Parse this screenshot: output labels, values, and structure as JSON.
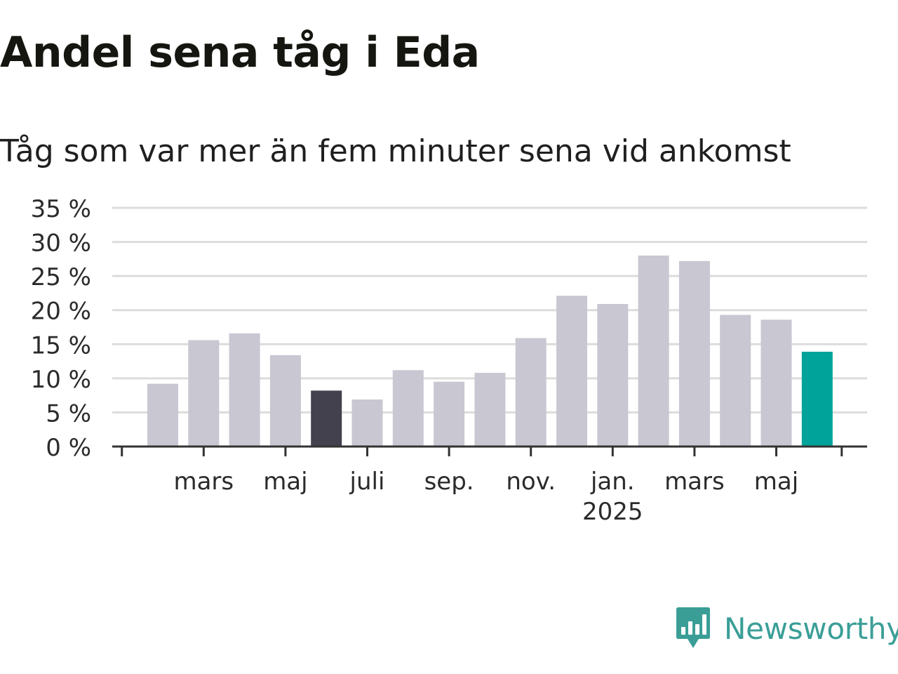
{
  "title": "Andel sena tåg i Eda",
  "subtitle": "Tåg som var mer än fem minuter sena vid ankomst",
  "logo": {
    "text": "Newsworthy",
    "color": "#3a9e97"
  },
  "chart_data": {
    "type": "bar",
    "categories": [
      "2024-02",
      "2024-03",
      "2024-04",
      "2024-05",
      "2024-06",
      "2024-07",
      "2024-08",
      "2024-09",
      "2024-10",
      "2024-11",
      "2024-12",
      "2025-01",
      "2025-02",
      "2025-03",
      "2025-04",
      "2025-05",
      "2025-06"
    ],
    "values": [
      9.2,
      15.6,
      16.6,
      13.4,
      8.2,
      6.9,
      11.2,
      9.5,
      10.8,
      15.9,
      22.1,
      20.9,
      28.0,
      27.2,
      19.3,
      18.6,
      13.9
    ],
    "bar_colors": [
      "#c8c7d2",
      "#c8c7d2",
      "#c8c7d2",
      "#c8c7d2",
      "#43414e",
      "#c8c7d2",
      "#c8c7d2",
      "#c8c7d2",
      "#c8c7d2",
      "#c8c7d2",
      "#c8c7d2",
      "#c8c7d2",
      "#c8c7d2",
      "#c8c7d2",
      "#c8c7d2",
      "#c8c7d2",
      "#00a39a"
    ],
    "highlight": {
      "category": "2024-06",
      "color": "#43414e"
    },
    "latest": {
      "category": "2025-06",
      "color": "#00a39a"
    },
    "ylim": [
      0,
      35
    ],
    "yticks": [
      0,
      5,
      10,
      15,
      20,
      25,
      30,
      35
    ],
    "ytick_labels": [
      "0 %",
      "5 %",
      "10 %",
      "15 %",
      "20 %",
      "25 %",
      "30 %",
      "35 %"
    ],
    "xtick_labels": [
      {
        "category": "2024-03",
        "label": "mars"
      },
      {
        "category": "2024-05",
        "label": "maj"
      },
      {
        "category": "2024-07",
        "label": "juli"
      },
      {
        "category": "2024-09",
        "label": "sep."
      },
      {
        "category": "2024-11",
        "label": "nov."
      },
      {
        "category": "2025-01",
        "label": "jan.",
        "year": "2025"
      },
      {
        "category": "2025-03",
        "label": "mars"
      },
      {
        "category": "2025-05",
        "label": "maj"
      }
    ],
    "grid": true,
    "xlabel": "",
    "ylabel": ""
  }
}
